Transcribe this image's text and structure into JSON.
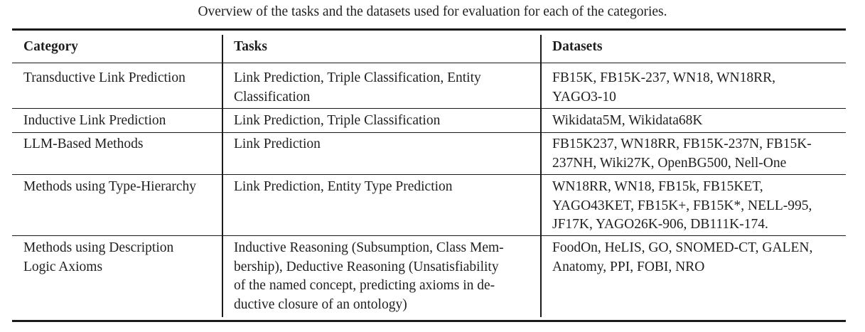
{
  "caption": "Overview of the tasks and the datasets used for evaluation for each of the categories.",
  "table": {
    "headers": {
      "category": "Category",
      "tasks": "Tasks",
      "datasets": "Datasets"
    },
    "rows": [
      {
        "category": [
          "Transductive Link Prediction"
        ],
        "tasks": [
          "Link Prediction, Triple Classification, Entity",
          "Classification"
        ],
        "datasets": [
          "FB15K, FB15K-237, WN18, WN18RR,",
          "YAGO3-10"
        ]
      },
      {
        "category": [
          "Inductive Link Prediction"
        ],
        "tasks": [
          "Link Prediction, Triple Classification"
        ],
        "datasets": [
          "Wikidata5M, Wikidata68K"
        ]
      },
      {
        "category": [
          "LLM-Based Methods"
        ],
        "tasks": [
          "Link Prediction"
        ],
        "datasets": [
          "FB15K237, WN18RR, FB15K-237N, FB15K-",
          "237NH, Wiki27K, OpenBG500, Nell-One"
        ]
      },
      {
        "category": [
          "Methods using Type-Hierarchy"
        ],
        "tasks": [
          "Link Prediction, Entity Type Prediction"
        ],
        "datasets": [
          "WN18RR, WN18, FB15k, FB15KET,",
          "YAGO43KET, FB15K+, FB15K*, NELL-995,",
          "JF17K, YAGO26K-906, DB111K-174."
        ]
      },
      {
        "category": [
          "Methods using Description",
          "Logic Axioms"
        ],
        "tasks": [
          "Inductive Reasoning (Subsumption, Class Mem-",
          "bership), Deductive Reasoning (Unsatisfiability",
          "of the named concept, predicting axioms in de-",
          "ductive closure of an ontology)"
        ],
        "datasets": [
          "FoodOn, HeLIS, GO, SNOMED-CT, GALEN,",
          "Anatomy, PPI, FOBI, NRO"
        ]
      }
    ]
  }
}
